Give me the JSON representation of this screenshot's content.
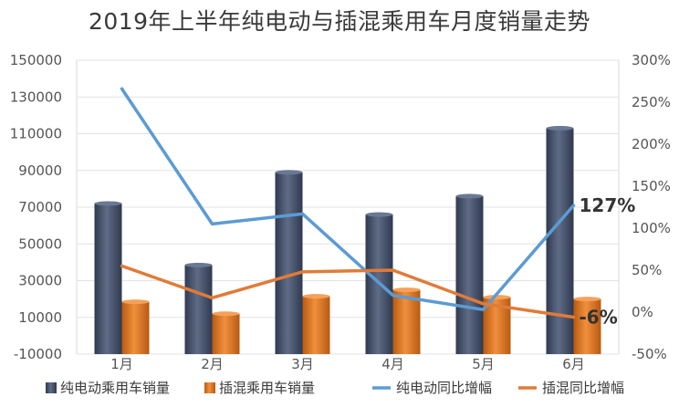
{
  "chart_data": {
    "type": "bar",
    "title": "2019年上半年纯电动与插混乘用车月度销量走势",
    "categories": [
      "1月",
      "2月",
      "3月",
      "4月",
      "5月",
      "6月"
    ],
    "y_left": {
      "min": -10000,
      "max": 150000,
      "ticks": [
        150000,
        130000,
        110000,
        90000,
        70000,
        50000,
        30000,
        10000,
        -10000
      ]
    },
    "y_right": {
      "min": -50,
      "max": 300,
      "ticks": [
        "300%",
        "250%",
        "200%",
        "150%",
        "100%",
        "50%",
        "0%",
        "-50%"
      ]
    },
    "grid": true,
    "legend_position": "bottom",
    "series": [
      {
        "name": "纯电动乘用车销量",
        "kind": "bar",
        "axis": "left",
        "color": "#4a5670",
        "values": [
          72000,
          38500,
          89000,
          66000,
          76000,
          113000
        ]
      },
      {
        "name": "插混乘用车销量",
        "kind": "bar",
        "axis": "left",
        "color": "#d9731f",
        "values": [
          18500,
          12000,
          21500,
          25000,
          21000,
          20000
        ]
      },
      {
        "name": "纯电动同比增幅",
        "kind": "line",
        "axis": "right",
        "color": "#5b9bd5",
        "values": [
          266,
          105,
          117,
          20,
          3,
          127
        ]
      },
      {
        "name": "插混同比增幅",
        "kind": "line",
        "axis": "right",
        "color": "#e07b39",
        "values": [
          55,
          17,
          48,
          50,
          10,
          -6
        ]
      }
    ],
    "annotations": [
      {
        "text": "127%",
        "series": 2,
        "index": 5
      },
      {
        "text": "-6%",
        "series": 3,
        "index": 5
      }
    ]
  }
}
